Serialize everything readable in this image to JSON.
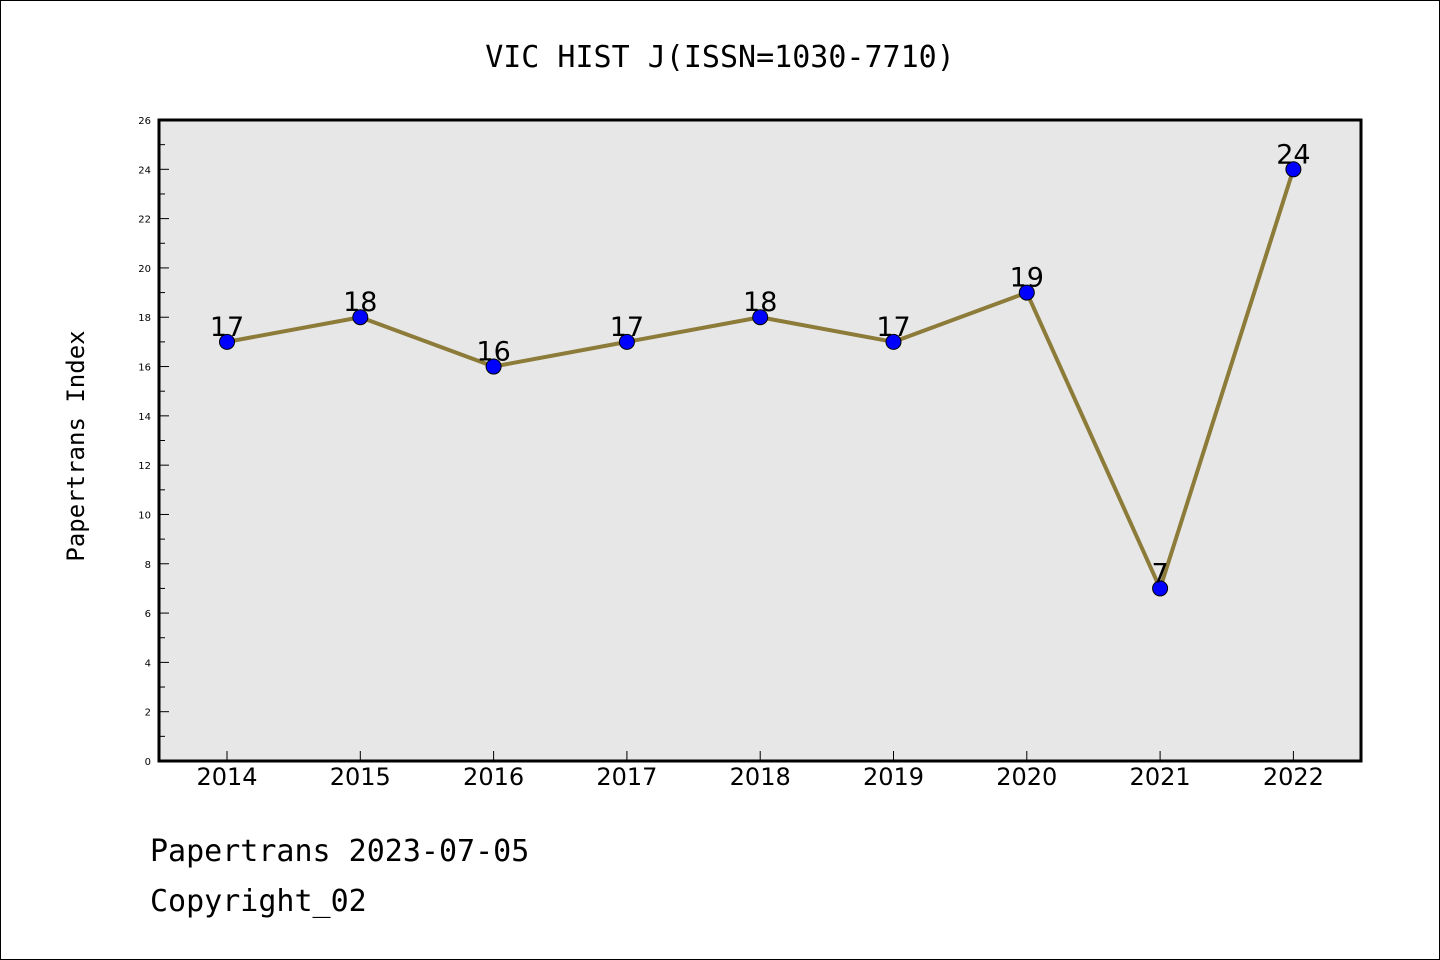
{
  "chart_data": {
    "type": "line",
    "title": "VIC HIST J(ISSN=1030-7710)",
    "xlabel": "",
    "ylabel": "Papertrans Index",
    "categories": [
      "2014",
      "2015",
      "2016",
      "2017",
      "2018",
      "2019",
      "2020",
      "2021",
      "2022"
    ],
    "values": [
      17,
      18,
      16,
      17,
      18,
      17,
      19,
      7,
      24
    ],
    "ylim": [
      0,
      26
    ],
    "yticks": [
      0,
      2,
      4,
      6,
      8,
      10,
      12,
      14,
      16,
      18,
      20,
      22,
      24,
      26
    ],
    "grid": false,
    "legend": "none",
    "data_labels": true,
    "colors": {
      "line": "#8c7b39",
      "marker": "#0000ff",
      "plot_background": "#e7e7e7"
    }
  },
  "footer": {
    "line1": "Papertrans 2023-07-05",
    "line2": "Copyright_02"
  }
}
